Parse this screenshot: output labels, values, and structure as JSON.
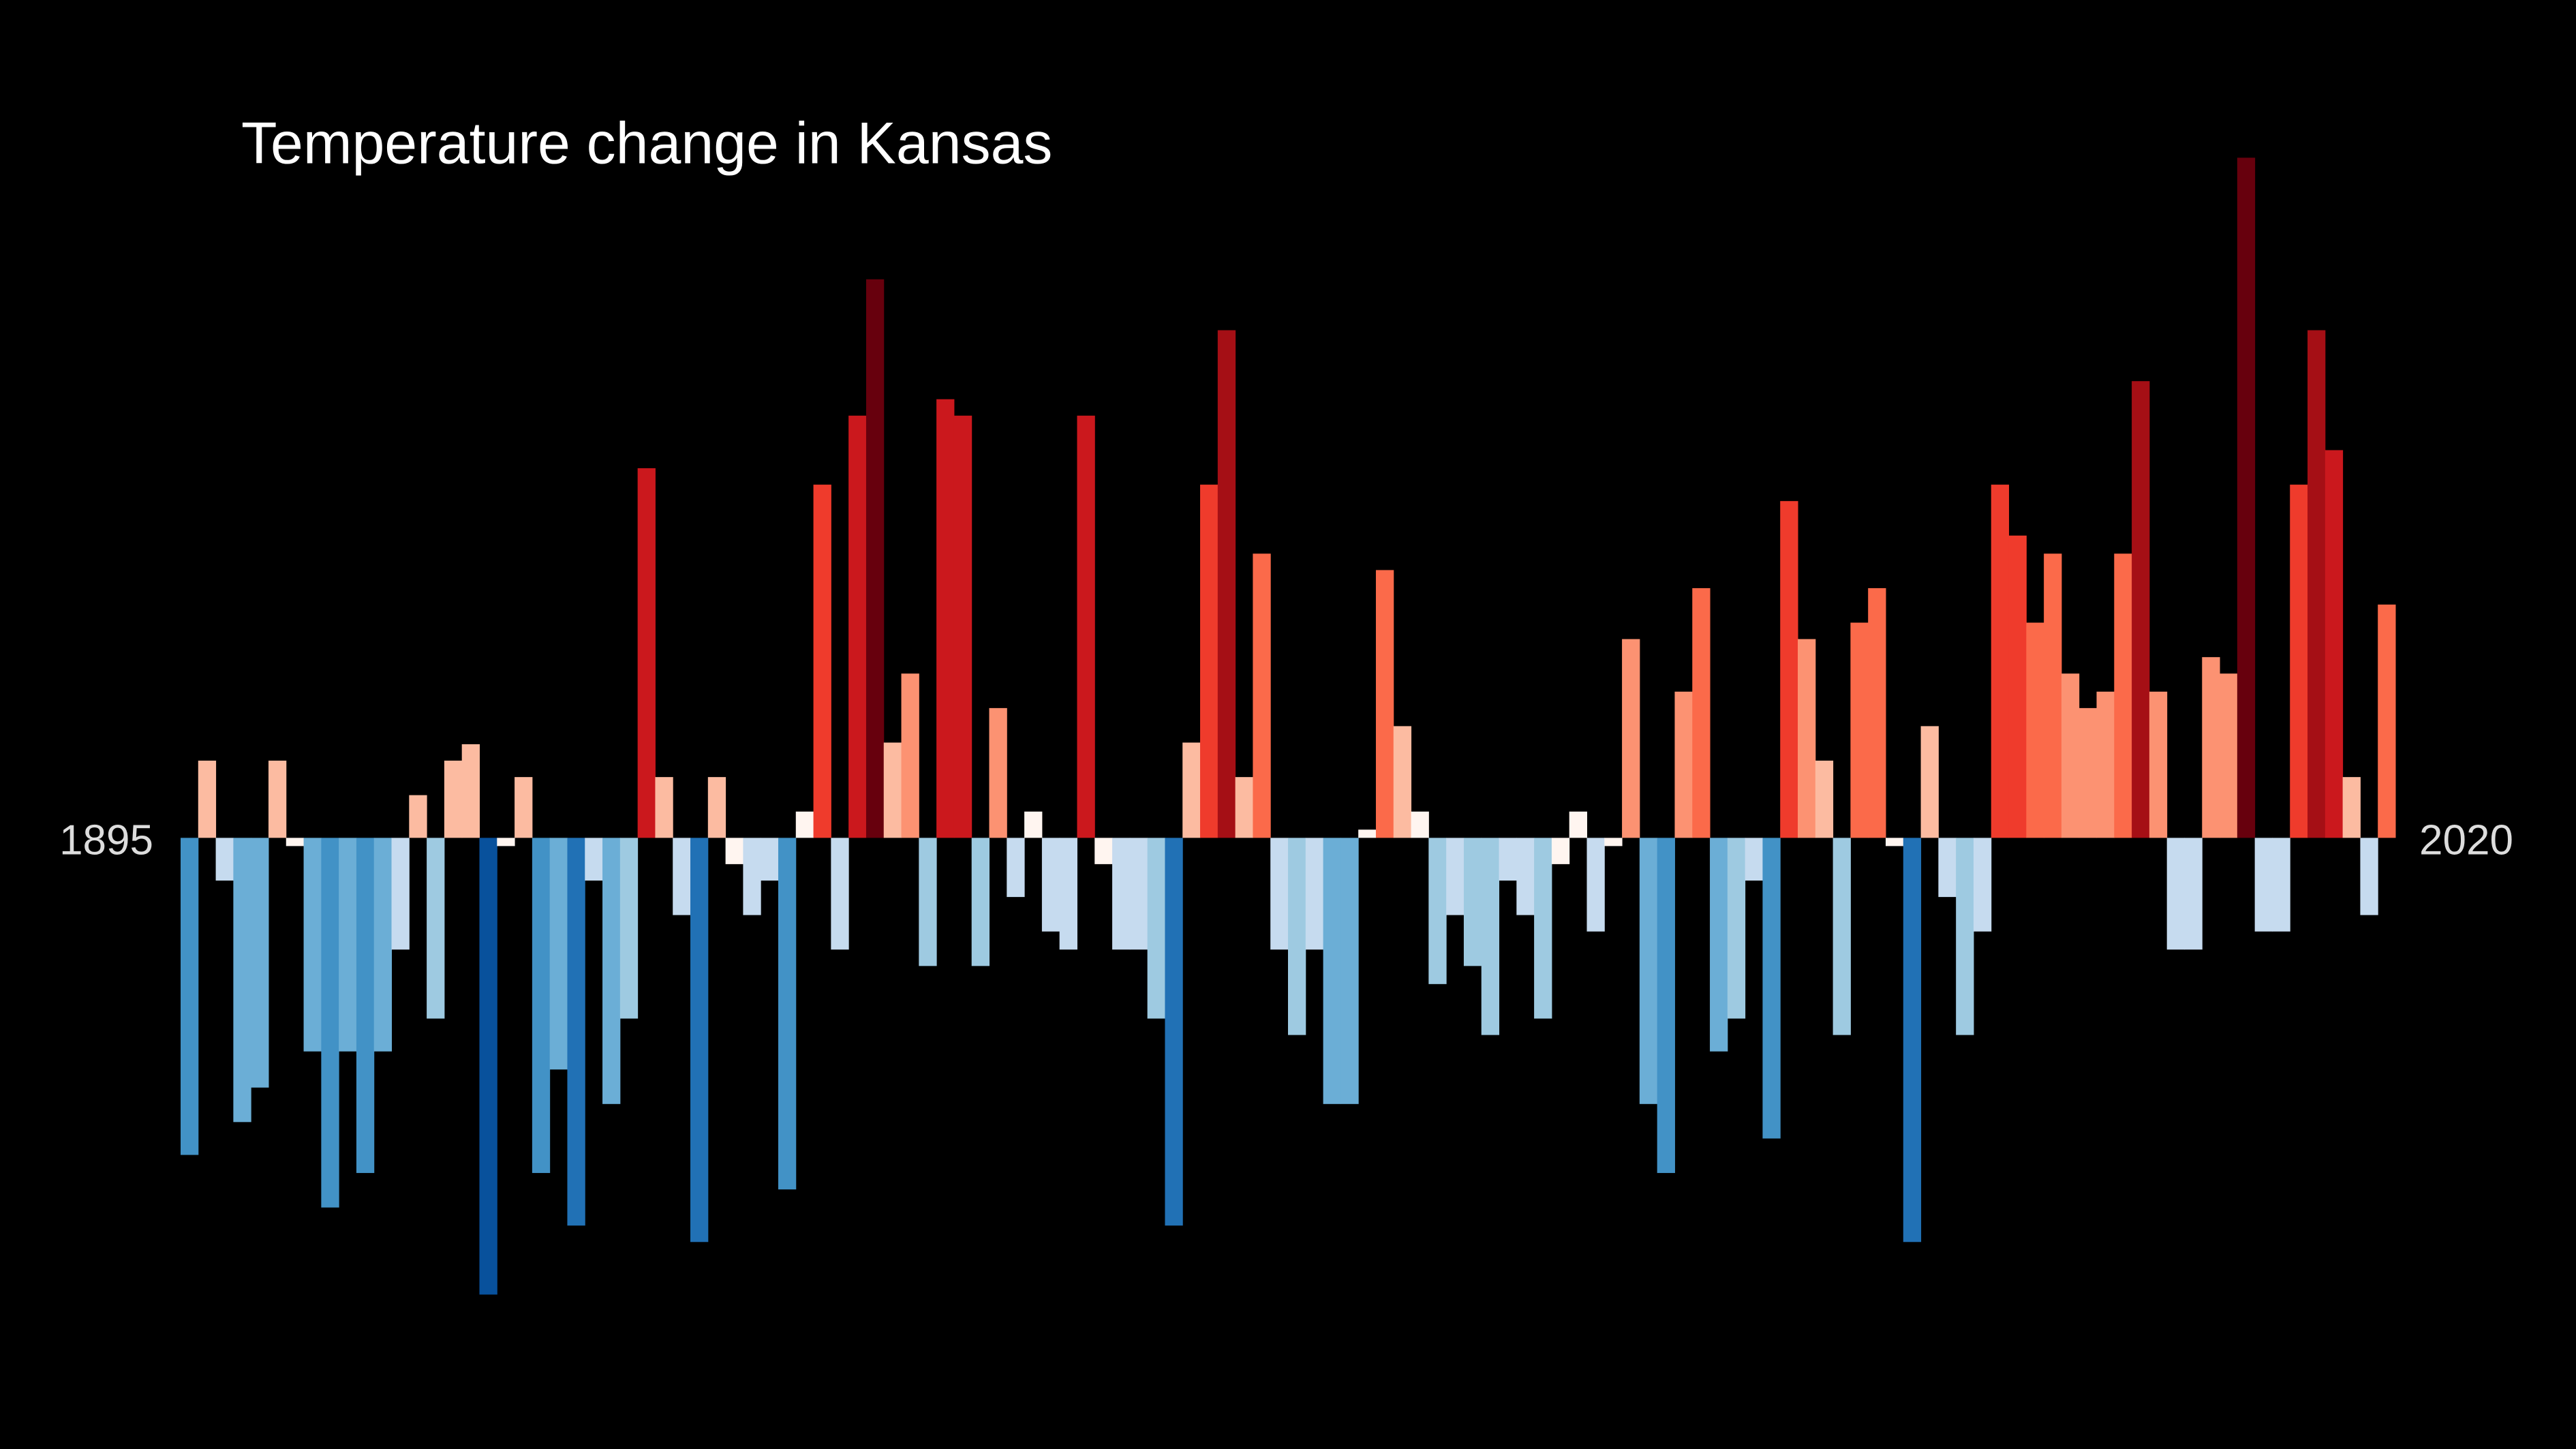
{
  "chart_data": {
    "type": "bar",
    "title": "Temperature change in Kansas",
    "categories": [
      "1895",
      null,
      null,
      null,
      null,
      null,
      null,
      null,
      null,
      null,
      null,
      null,
      null,
      null,
      null,
      null,
      null,
      null,
      null,
      null,
      null,
      null,
      null,
      null,
      null,
      null,
      null,
      null,
      null,
      null,
      null,
      null,
      null,
      null,
      null,
      null,
      null,
      null,
      null,
      null,
      null,
      null,
      null,
      null,
      null,
      null,
      null,
      null,
      null,
      null,
      null,
      null,
      null,
      null,
      null,
      null,
      null,
      null,
      null,
      null,
      null,
      null,
      null,
      null,
      null,
      null,
      null,
      null,
      null,
      null,
      null,
      null,
      null,
      null,
      null,
      null,
      null,
      null,
      null,
      null,
      null,
      null,
      null,
      null,
      null,
      null,
      null,
      null,
      null,
      null,
      null,
      null,
      null,
      null,
      null,
      null,
      null,
      null,
      null,
      null,
      null,
      null,
      null,
      null,
      null,
      null,
      null,
      null,
      null,
      null,
      null,
      null,
      null,
      null,
      null,
      null,
      null,
      null,
      null,
      null,
      null,
      null,
      null,
      null,
      null,
      "2020"
    ],
    "values": [
      -1.93,
      0.47,
      -0.26,
      -1.73,
      -1.52,
      0.47,
      -0.05,
      -1.3,
      -2.25,
      -1.3,
      -2.04,
      -1.3,
      -0.68,
      0.26,
      -1.1,
      0.47,
      0.57,
      -2.78,
      -0.05,
      0.37,
      -2.04,
      -1.41,
      -2.36,
      -0.26,
      -1.62,
      -1.1,
      2.25,
      0.37,
      -0.47,
      -2.46,
      0.37,
      -0.16,
      -0.47,
      -0.26,
      -2.14,
      0.16,
      2.15,
      -0.68,
      2.57,
      3.4,
      0.58,
      1.0,
      -0.78,
      2.67,
      2.57,
      -0.78,
      0.79,
      -0.36,
      0.16,
      -0.57,
      -0.68,
      2.57,
      -0.16,
      -0.68,
      -0.68,
      -1.1,
      -2.36,
      0.58,
      2.15,
      3.09,
      0.37,
      1.73,
      -0.68,
      -1.2,
      -0.68,
      -1.62,
      -1.62,
      0.05,
      1.63,
      0.68,
      0.16,
      -0.89,
      -0.47,
      -0.78,
      -1.2,
      -0.26,
      -0.47,
      -1.1,
      -0.16,
      0.16,
      -0.57,
      -0.05,
      1.21,
      -1.62,
      -2.04,
      0.89,
      1.52,
      -1.3,
      -1.1,
      -0.26,
      -1.83,
      2.05,
      1.21,
      0.47,
      -1.2,
      1.31,
      1.52,
      -0.05,
      -2.46,
      0.68,
      -0.36,
      -1.2,
      -0.57,
      2.15,
      1.84,
      1.31,
      1.73,
      1.0,
      0.79,
      0.89,
      1.73,
      2.78,
      0.89,
      -0.68,
      -0.68,
      1.1,
      1.0,
      4.14,
      -0.57,
      -0.57,
      2.15,
      3.09,
      2.36,
      0.37,
      -0.47,
      1.42
    ],
    "ylim": [
      -3.72,
      5.1
    ],
    "clim": [
      -3.5,
      3.5
    ],
    "colormap": [
      "#08306b",
      "#08519c",
      "#2171b5",
      "#4292c6",
      "#6baed6",
      "#9ecae1",
      "#c6dbef",
      "#fff5f0",
      "#fcbba1",
      "#fc9272",
      "#fb6a4a",
      "#ef3b2c",
      "#cb181d",
      "#a50f15",
      "#67000d"
    ],
    "background": "#000000"
  }
}
